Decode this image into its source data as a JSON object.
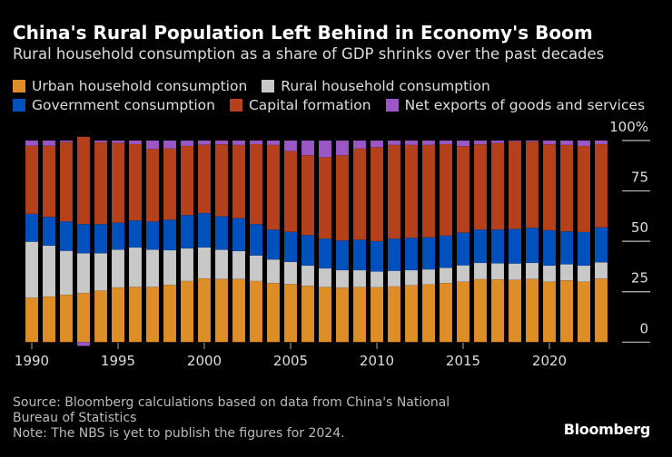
{
  "title": "China's Rural Population Left Behind in Economy's Boom",
  "subtitle": "Rural household consumption as a share of GDP shrinks over the past decades",
  "source": "Source: Bloomberg calculations based on data from China's National Bureau of Statistics",
  "note": "Note: The NBS is yet to publish the figures for 2024.",
  "logo": "Bloomberg",
  "chart_data": {
    "type": "bar",
    "stacked": true,
    "title": "China's Rural Population Left Behind in Economy's Boom",
    "subtitle": "Rural household consumption as a share of GDP shrinks over the past decades",
    "xlabel": "",
    "ylabel": "",
    "ylim": [
      0,
      100
    ],
    "y_ticks": [
      "0",
      "25",
      "50",
      "75",
      "100%"
    ],
    "x_ticks": [
      "1990",
      "1995",
      "2000",
      "2005",
      "2010",
      "2015",
      "2020"
    ],
    "legend_position": "top",
    "categories": [
      1990,
      1991,
      1992,
      1993,
      1994,
      1995,
      1996,
      1997,
      1998,
      1999,
      2000,
      2001,
      2002,
      2003,
      2004,
      2005,
      2006,
      2007,
      2008,
      2009,
      2010,
      2011,
      2012,
      2013,
      2014,
      2015,
      2016,
      2017,
      2018,
      2019,
      2020,
      2021,
      2022,
      2023
    ],
    "series": [
      {
        "name": "Urban household consumption",
        "color": "#de8e27",
        "values": [
          22.0,
          22.6,
          23.5,
          24.4,
          25.5,
          27.1,
          27.4,
          27.4,
          28.4,
          30.3,
          31.6,
          31.3,
          31.3,
          30.3,
          29.3,
          28.8,
          27.9,
          27.3,
          27.0,
          27.3,
          27.2,
          27.6,
          28.2,
          28.7,
          29.3,
          30.0,
          31.2,
          31.1,
          30.9,
          31.3,
          30.0,
          30.6,
          30.0,
          31.5
        ]
      },
      {
        "name": "Rural household consumption",
        "color": "#c8c8c8",
        "values": [
          27.8,
          25.3,
          21.8,
          19.7,
          18.6,
          18.8,
          19.6,
          18.5,
          17.2,
          16.2,
          15.4,
          14.5,
          13.9,
          12.7,
          11.7,
          11.0,
          10.1,
          9.3,
          8.7,
          8.4,
          7.8,
          7.8,
          7.5,
          7.4,
          7.6,
          8.1,
          8.1,
          8.0,
          8.1,
          8.0,
          8.0,
          8.0,
          8.0,
          8.1
        ]
      },
      {
        "name": "Government consumption",
        "color": "#0051be",
        "values": [
          13.8,
          14.2,
          14.5,
          14.4,
          14.4,
          13.3,
          13.3,
          13.9,
          15.1,
          16.5,
          17.0,
          16.6,
          16.3,
          15.5,
          14.8,
          14.9,
          15.1,
          14.7,
          14.7,
          15.1,
          15.1,
          15.9,
          16.0,
          15.9,
          15.9,
          16.2,
          16.5,
          16.7,
          17.1,
          17.4,
          17.5,
          16.3,
          16.6,
          17.3
        ]
      },
      {
        "name": "Capital formation",
        "color": "#b4411c",
        "values": [
          33.8,
          35.3,
          39.4,
          43.4,
          40.6,
          39.6,
          37.9,
          36.0,
          35.3,
          34.3,
          33.9,
          35.7,
          36.3,
          39.7,
          42.0,
          40.1,
          39.6,
          40.4,
          42.3,
          45.2,
          46.6,
          46.5,
          46.1,
          45.8,
          45.4,
          42.9,
          42.3,
          42.9,
          43.5,
          42.7,
          42.6,
          42.9,
          42.7,
          41.3
        ]
      },
      {
        "name": "Net exports of goods and services",
        "color": "#9b58c4",
        "values": [
          2.6,
          2.6,
          0.8,
          -1.9,
          0.9,
          1.2,
          1.8,
          4.2,
          4.0,
          2.7,
          2.1,
          1.9,
          2.2,
          1.8,
          2.2,
          5.2,
          7.3,
          8.3,
          7.3,
          4.0,
          3.3,
          2.2,
          2.2,
          2.2,
          1.8,
          2.8,
          1.9,
          1.3,
          0.4,
          0.6,
          1.9,
          2.2,
          2.7,
          1.8
        ]
      }
    ]
  }
}
